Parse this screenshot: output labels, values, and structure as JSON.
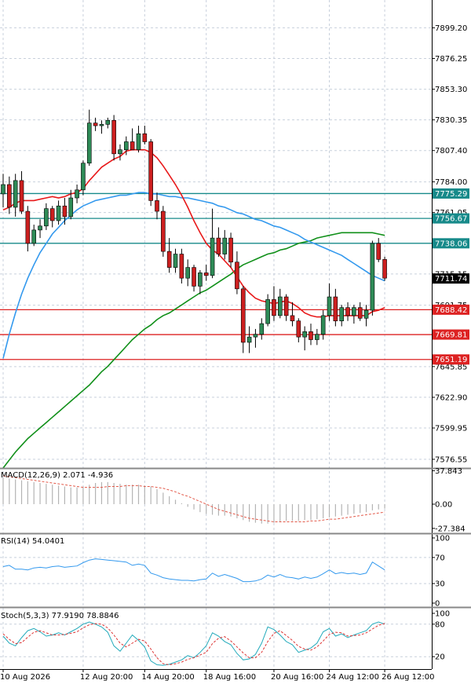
{
  "colors": {
    "background": "#ffffff",
    "grid": "#c8d0dc",
    "axis": "#000000",
    "bull": "#2e8b57",
    "bear": "#cc1f1f",
    "sma_fast": "#e8191a",
    "sma_mid": "#3399ee",
    "sma_slow": "#11901a",
    "level_teal": "#178a8a",
    "level_red": "#dd2222",
    "macd_hist": "#b4b4b4",
    "macd_signal": "#e35a4a",
    "rsi_line": "#3399ee",
    "stoch_main": "#22aabb",
    "stoch_signal": "#dd3333"
  },
  "chart_data": {
    "type": "candlestick",
    "main": {
      "y_ticks": [
        "7899.20",
        "7876.25",
        "7853.30",
        "7830.35",
        "7807.40",
        "7784.00",
        "7761.05",
        "7715.15",
        "7691.75",
        "7645.85",
        "7622.90",
        "7599.95",
        "7576.55"
      ],
      "ylim": [
        7570,
        7920
      ],
      "candles": [
        {
          "o": 7775,
          "h": 7790,
          "l": 7765,
          "c": 7782
        },
        {
          "o": 7782,
          "h": 7788,
          "l": 7760,
          "c": 7765
        },
        {
          "o": 7765,
          "h": 7790,
          "l": 7758,
          "c": 7785
        },
        {
          "o": 7785,
          "h": 7792,
          "l": 7760,
          "c": 7762
        },
        {
          "o": 7762,
          "h": 7766,
          "l": 7732,
          "c": 7738
        },
        {
          "o": 7738,
          "h": 7752,
          "l": 7736,
          "c": 7748
        },
        {
          "o": 7748,
          "h": 7756,
          "l": 7742,
          "c": 7751
        },
        {
          "o": 7751,
          "h": 7768,
          "l": 7748,
          "c": 7764
        },
        {
          "o": 7764,
          "h": 7766,
          "l": 7750,
          "c": 7755
        },
        {
          "o": 7755,
          "h": 7770,
          "l": 7752,
          "c": 7766
        },
        {
          "o": 7766,
          "h": 7772,
          "l": 7752,
          "c": 7758
        },
        {
          "o": 7758,
          "h": 7778,
          "l": 7756,
          "c": 7772
        },
        {
          "o": 7772,
          "h": 7782,
          "l": 7768,
          "c": 7778
        },
        {
          "o": 7778,
          "h": 7800,
          "l": 7774,
          "c": 7798
        },
        {
          "o": 7798,
          "h": 7838,
          "l": 7796,
          "c": 7828
        },
        {
          "o": 7828,
          "h": 7832,
          "l": 7822,
          "c": 7826
        },
        {
          "o": 7826,
          "h": 7830,
          "l": 7820,
          "c": 7827
        },
        {
          "o": 7827,
          "h": 7832,
          "l": 7824,
          "c": 7830
        },
        {
          "o": 7830,
          "h": 7834,
          "l": 7800,
          "c": 7805
        },
        {
          "o": 7805,
          "h": 7812,
          "l": 7800,
          "c": 7808
        },
        {
          "o": 7808,
          "h": 7818,
          "l": 7804,
          "c": 7814
        },
        {
          "o": 7814,
          "h": 7824,
          "l": 7808,
          "c": 7808
        },
        {
          "o": 7808,
          "h": 7826,
          "l": 7806,
          "c": 7820
        },
        {
          "o": 7820,
          "h": 7826,
          "l": 7812,
          "c": 7814
        },
        {
          "o": 7814,
          "h": 7816,
          "l": 7766,
          "c": 7770
        },
        {
          "o": 7770,
          "h": 7776,
          "l": 7756,
          "c": 7762
        },
        {
          "o": 7762,
          "h": 7766,
          "l": 7728,
          "c": 7732
        },
        {
          "o": 7732,
          "h": 7742,
          "l": 7716,
          "c": 7720
        },
        {
          "o": 7720,
          "h": 7734,
          "l": 7716,
          "c": 7730
        },
        {
          "o": 7730,
          "h": 7734,
          "l": 7708,
          "c": 7712
        },
        {
          "o": 7712,
          "h": 7726,
          "l": 7706,
          "c": 7720
        },
        {
          "o": 7720,
          "h": 7722,
          "l": 7702,
          "c": 7706
        },
        {
          "o": 7706,
          "h": 7718,
          "l": 7700,
          "c": 7716
        },
        {
          "o": 7716,
          "h": 7722,
          "l": 7710,
          "c": 7714
        },
        {
          "o": 7714,
          "h": 7764,
          "l": 7712,
          "c": 7742
        },
        {
          "o": 7742,
          "h": 7750,
          "l": 7728,
          "c": 7730
        },
        {
          "o": 7730,
          "h": 7748,
          "l": 7726,
          "c": 7742
        },
        {
          "o": 7742,
          "h": 7746,
          "l": 7720,
          "c": 7724
        },
        {
          "o": 7724,
          "h": 7732,
          "l": 7700,
          "c": 7704
        },
        {
          "o": 7704,
          "h": 7706,
          "l": 7656,
          "c": 7664
        },
        {
          "o": 7664,
          "h": 7676,
          "l": 7656,
          "c": 7668
        },
        {
          "o": 7668,
          "h": 7674,
          "l": 7660,
          "c": 7670
        },
        {
          "o": 7670,
          "h": 7682,
          "l": 7666,
          "c": 7678
        },
        {
          "o": 7678,
          "h": 7700,
          "l": 7676,
          "c": 7696
        },
        {
          "o": 7696,
          "h": 7706,
          "l": 7680,
          "c": 7684
        },
        {
          "o": 7684,
          "h": 7704,
          "l": 7682,
          "c": 7698
        },
        {
          "o": 7698,
          "h": 7700,
          "l": 7680,
          "c": 7684
        },
        {
          "o": 7684,
          "h": 7694,
          "l": 7676,
          "c": 7680
        },
        {
          "o": 7680,
          "h": 7682,
          "l": 7664,
          "c": 7668
        },
        {
          "o": 7668,
          "h": 7676,
          "l": 7658,
          "c": 7672
        },
        {
          "o": 7672,
          "h": 7678,
          "l": 7662,
          "c": 7666
        },
        {
          "o": 7666,
          "h": 7674,
          "l": 7662,
          "c": 7670
        },
        {
          "o": 7670,
          "h": 7688,
          "l": 7666,
          "c": 7684
        },
        {
          "o": 7684,
          "h": 7708,
          "l": 7680,
          "c": 7698
        },
        {
          "o": 7698,
          "h": 7704,
          "l": 7676,
          "c": 7680
        },
        {
          "o": 7680,
          "h": 7692,
          "l": 7676,
          "c": 7690
        },
        {
          "o": 7690,
          "h": 7694,
          "l": 7680,
          "c": 7684
        },
        {
          "o": 7684,
          "h": 7692,
          "l": 7678,
          "c": 7690
        },
        {
          "o": 7690,
          "h": 7694,
          "l": 7680,
          "c": 7682
        },
        {
          "o": 7682,
          "h": 7692,
          "l": 7676,
          "c": 7688
        },
        {
          "o": 7688,
          "h": 7740,
          "l": 7684,
          "c": 7738
        },
        {
          "o": 7738,
          "h": 7742,
          "l": 7724,
          "c": 7726
        },
        {
          "o": 7726,
          "h": 7728,
          "l": 7710,
          "c": 7712
        }
      ],
      "sma_fast": [
        7763,
        7765,
        7768,
        7770,
        7770,
        7770,
        7771,
        7772,
        7773,
        7772,
        7773,
        7775,
        7776,
        7779,
        7785,
        7790,
        7795,
        7798,
        7801,
        7803,
        7807,
        7808,
        7808,
        7808,
        7806,
        7802,
        7796,
        7789,
        7782,
        7774,
        7765,
        7755,
        7746,
        7738,
        7733,
        7730,
        7725,
        7720,
        7713,
        7706,
        7701,
        7697,
        7695,
        7694,
        7693,
        7694,
        7695,
        7693,
        7690,
        7686,
        7684,
        7683,
        7683,
        7684,
        7684,
        7684,
        7684,
        7684,
        7684,
        7684,
        7687,
        7688,
        7690
      ],
      "sma_mid": [
        7652,
        7670,
        7686,
        7700,
        7712,
        7722,
        7731,
        7738,
        7745,
        7750,
        7755,
        7759,
        7763,
        7766,
        7768,
        7770,
        7771,
        7772,
        7773,
        7774,
        7774,
        7775,
        7776,
        7776,
        7775,
        7775,
        7774,
        7773,
        7773,
        7772,
        7772,
        7771,
        7770,
        7769,
        7768,
        7766,
        7765,
        7763,
        7761,
        7760,
        7758,
        7756,
        7755,
        7753,
        7751,
        7750,
        7748,
        7746,
        7744,
        7741,
        7739,
        7737,
        7735,
        7733,
        7731,
        7729,
        7726,
        7723,
        7720,
        7717,
        7714,
        7712,
        7710
      ],
      "sma_slow": [
        7570,
        7576,
        7582,
        7587,
        7592,
        7596,
        7600,
        7604,
        7608,
        7612,
        7616,
        7620,
        7624,
        7628,
        7632,
        7637,
        7642,
        7646,
        7651,
        7656,
        7661,
        7666,
        7670,
        7674,
        7677,
        7681,
        7684,
        7686,
        7689,
        7692,
        7695,
        7698,
        7701,
        7703,
        7706,
        7709,
        7712,
        7715,
        7719,
        7722,
        7724,
        7726,
        7728,
        7730,
        7731,
        7733,
        7734,
        7736,
        7738,
        7739,
        7740,
        7742,
        7743,
        7744,
        7745,
        7746,
        7746,
        7746,
        7746,
        7746,
        7746,
        7745,
        7744
      ],
      "levels": [
        {
          "value": 7775.29,
          "label": "7775.29",
          "kind": "teal"
        },
        {
          "value": 7756.67,
          "label": "7756.67",
          "kind": "teal"
        },
        {
          "value": 7738.06,
          "label": "7738.06",
          "kind": "teal"
        },
        {
          "value": 7688.42,
          "label": "7688.42",
          "kind": "red"
        },
        {
          "value": 7669.81,
          "label": "7669.81",
          "kind": "red"
        },
        {
          "value": 7651.19,
          "label": "7651.19",
          "kind": "red"
        }
      ],
      "current_price": {
        "value": 7711.74,
        "label": "7711.74"
      }
    },
    "macd": {
      "label": "MACD(12,26,9) 2.071 -4.936",
      "y_ticks": [
        "37.843",
        "0.00",
        "-27.384"
      ],
      "ylim": [
        -32,
        40
      ],
      "hist": [
        30,
        29,
        28,
        27,
        26,
        25,
        24,
        23,
        22,
        21,
        20,
        19,
        19,
        20,
        22,
        24,
        25,
        25,
        24,
        23,
        22,
        22,
        22,
        21,
        20,
        17,
        13,
        9,
        5,
        1,
        -3,
        -6,
        -9,
        -11,
        -12,
        -13,
        -13,
        -14,
        -16,
        -18,
        -20,
        -21,
        -22,
        -22,
        -21,
        -20,
        -19,
        -19,
        -19,
        -18,
        -18,
        -17,
        -16,
        -15,
        -14,
        -13,
        -12,
        -11,
        -10,
        -9,
        -7,
        -6,
        -5
      ],
      "signal": [
        32,
        31,
        30,
        29,
        28,
        27,
        26,
        25,
        24,
        23,
        22,
        21,
        20,
        19,
        19,
        19,
        19,
        20,
        20,
        20,
        21,
        21,
        21,
        20,
        20,
        19,
        18,
        16,
        14,
        11,
        9,
        6,
        3,
        0,
        -3,
        -6,
        -8,
        -10,
        -12,
        -14,
        -16,
        -17,
        -18,
        -19,
        -20,
        -20,
        -20,
        -20,
        -20,
        -20,
        -19,
        -19,
        -18,
        -17,
        -17,
        -16,
        -15,
        -14,
        -13,
        -12,
        -11,
        -10,
        -9
      ]
    },
    "rsi": {
      "label": "RSI(14) 54.0401",
      "y_ticks": [
        "100",
        "70",
        "30",
        "0"
      ],
      "ylim": [
        0,
        100
      ],
      "values": [
        56,
        58,
        52,
        52,
        51,
        54,
        55,
        54,
        56,
        57,
        55,
        56,
        57,
        62,
        66,
        68,
        67,
        66,
        65,
        64,
        63,
        58,
        60,
        58,
        46,
        43,
        39,
        37,
        36,
        35,
        35,
        34,
        36,
        37,
        46,
        41,
        44,
        41,
        38,
        33,
        33,
        34,
        37,
        43,
        40,
        44,
        40,
        39,
        37,
        40,
        38,
        40,
        45,
        51,
        45,
        47,
        45,
        46,
        44,
        46,
        63,
        57,
        51
      ]
    },
    "stoch": {
      "label": "Stoch(5,3,3) 77.9190 78.8846",
      "y_ticks": [
        "100",
        "80",
        "20"
      ],
      "ylim": [
        0,
        100
      ],
      "k": [
        58,
        45,
        40,
        55,
        68,
        72,
        66,
        58,
        60,
        64,
        60,
        66,
        72,
        80,
        84,
        80,
        75,
        65,
        40,
        30,
        45,
        60,
        50,
        38,
        12,
        5,
        4,
        6,
        10,
        14,
        22,
        18,
        28,
        40,
        64,
        58,
        48,
        42,
        26,
        14,
        16,
        24,
        45,
        75,
        70,
        60,
        48,
        42,
        28,
        32,
        36,
        45,
        66,
        72,
        58,
        62,
        55,
        60,
        64,
        68,
        80,
        84,
        80
      ],
      "d": [
        62,
        52,
        44,
        46,
        56,
        65,
        68,
        64,
        60,
        60,
        61,
        63,
        66,
        73,
        79,
        81,
        80,
        73,
        60,
        45,
        38,
        45,
        52,
        49,
        34,
        18,
        7,
        5,
        7,
        10,
        15,
        18,
        23,
        28,
        44,
        54,
        57,
        49,
        38,
        27,
        18,
        18,
        28,
        48,
        63,
        68,
        59,
        50,
        39,
        34,
        32,
        38,
        49,
        61,
        65,
        64,
        58,
        59,
        60,
        64,
        71,
        78,
        81
      ]
    },
    "x_ticks": [
      {
        "index": 0,
        "label": "10 Aug 2026"
      },
      {
        "index": 13,
        "label": "12 Aug 20:00"
      },
      {
        "index": 23,
        "label": "14 Aug 20:00"
      },
      {
        "index": 33,
        "label": "18 Aug 16:00"
      },
      {
        "index": 44,
        "label": "20 Aug 16:00"
      },
      {
        "index": 53,
        "label": "24 Aug 12:00"
      },
      {
        "index": 62,
        "label": "26 Aug 12:00"
      }
    ]
  }
}
